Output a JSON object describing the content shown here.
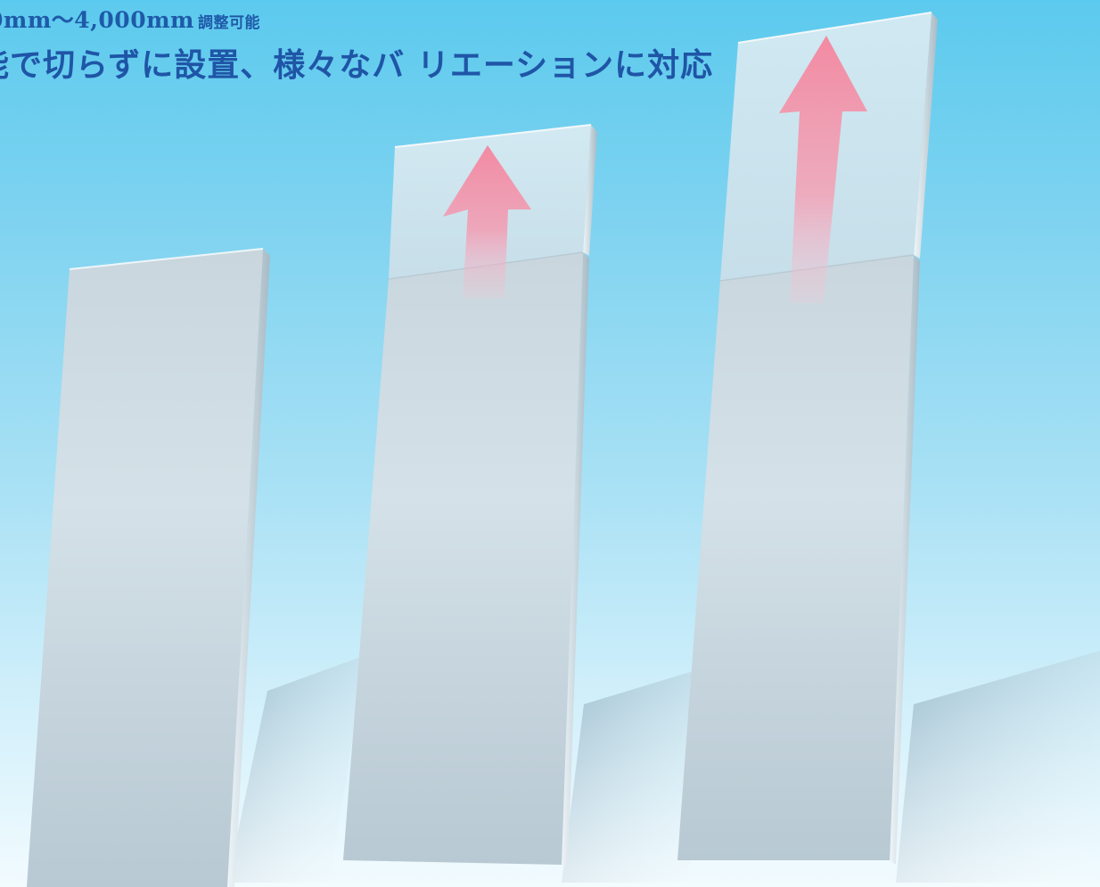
{
  "headline": {
    "range_text": "0mm〜4,000mm",
    "range_suffix": "調整可能",
    "tagline": "能で切らずに設置、様々なバ リエーションに対応"
  },
  "colors": {
    "background_top": "#5ccaee",
    "background_bottom": "#f2fbfe",
    "heading_text": "#1e5aa8",
    "panel_face": "#cfdce3",
    "panel_edge": "#a9bcc7",
    "arrow": "#f08aa3"
  },
  "icons": {
    "extension_arrow": "up-arrow-icon"
  }
}
